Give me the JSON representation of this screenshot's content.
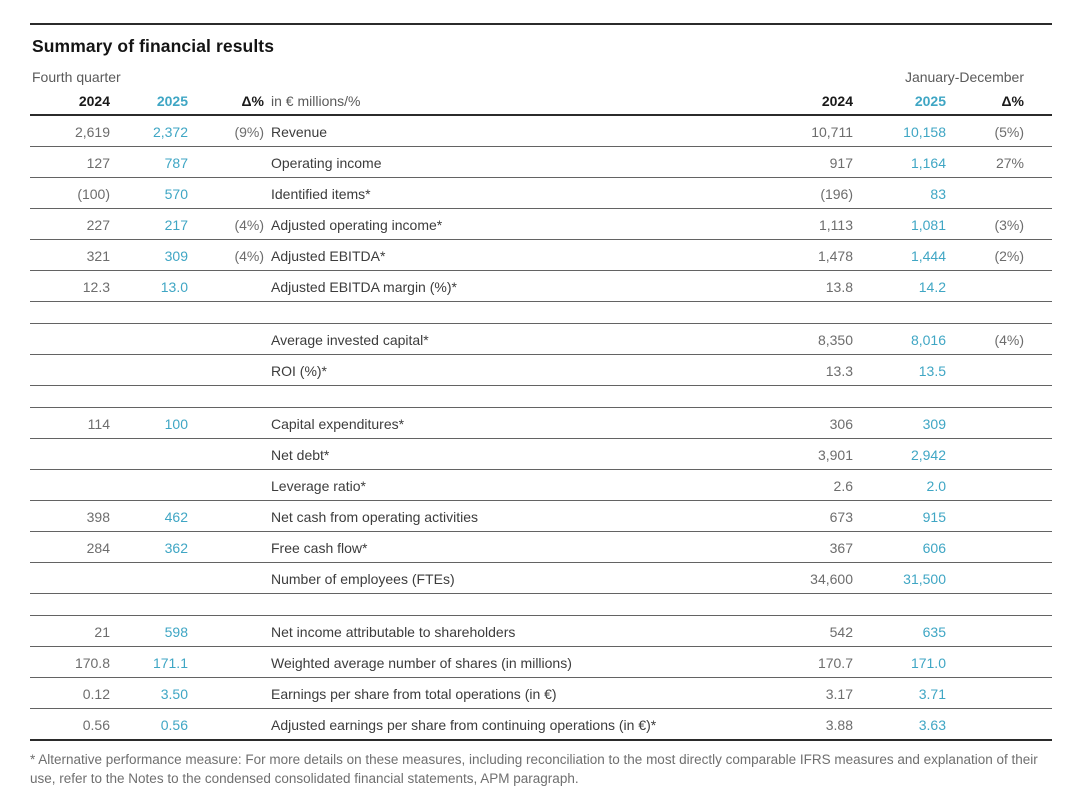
{
  "page": {
    "title": "Summary of financial results"
  },
  "table": {
    "accent_color": "#3fa6c4",
    "left_period_label": "Fourth quarter",
    "right_period_label": "January-December",
    "unit_label": "in € millions/%",
    "columns": {
      "year_prior": "2024",
      "year_current": "2025",
      "delta": "Δ%"
    },
    "groups": [
      [
        {
          "fq2024": "2,619",
          "fq2025": "2,372",
          "fq_delta": "(9%)",
          "label": "Revenue",
          "jd2024": "10,711",
          "jd2025": "10,158",
          "jd_delta": "(5%)"
        },
        {
          "fq2024": "127",
          "fq2025": "787",
          "fq_delta": "",
          "label": "Operating income",
          "jd2024": "917",
          "jd2025": "1,164",
          "jd_delta": "27%"
        },
        {
          "fq2024": "(100)",
          "fq2025": "570",
          "fq_delta": "",
          "label": "Identified items*",
          "jd2024": "(196)",
          "jd2025": "83",
          "jd_delta": ""
        },
        {
          "fq2024": "227",
          "fq2025": "217",
          "fq_delta": "(4%)",
          "label": "Adjusted operating income*",
          "jd2024": "1,113",
          "jd2025": "1,081",
          "jd_delta": "(3%)"
        },
        {
          "fq2024": "321",
          "fq2025": "309",
          "fq_delta": "(4%)",
          "label": "Adjusted EBITDA*",
          "jd2024": "1,478",
          "jd2025": "1,444",
          "jd_delta": "(2%)"
        },
        {
          "fq2024": "12.3",
          "fq2025": "13.0",
          "fq_delta": "",
          "label": "Adjusted EBITDA margin (%)*",
          "jd2024": "13.8",
          "jd2025": "14.2",
          "jd_delta": ""
        }
      ],
      [
        {
          "fq2024": "",
          "fq2025": "",
          "fq_delta": "",
          "label": "Average invested capital*",
          "jd2024": "8,350",
          "jd2025": "8,016",
          "jd_delta": "(4%)"
        },
        {
          "fq2024": "",
          "fq2025": "",
          "fq_delta": "",
          "label": "ROI (%)*",
          "jd2024": "13.3",
          "jd2025": "13.5",
          "jd_delta": ""
        }
      ],
      [
        {
          "fq2024": "114",
          "fq2025": "100",
          "fq_delta": "",
          "label": "Capital expenditures*",
          "jd2024": "306",
          "jd2025": "309",
          "jd_delta": ""
        },
        {
          "fq2024": "",
          "fq2025": "",
          "fq_delta": "",
          "label": "Net debt*",
          "jd2024": "3,901",
          "jd2025": "2,942",
          "jd_delta": ""
        },
        {
          "fq2024": "",
          "fq2025": "",
          "fq_delta": "",
          "label": "Leverage ratio*",
          "jd2024": "2.6",
          "jd2025": "2.0",
          "jd_delta": ""
        },
        {
          "fq2024": "398",
          "fq2025": "462",
          "fq_delta": "",
          "label": "Net cash from operating activities",
          "jd2024": "673",
          "jd2025": "915",
          "jd_delta": ""
        },
        {
          "fq2024": "284",
          "fq2025": "362",
          "fq_delta": "",
          "label": "Free cash flow*",
          "jd2024": "367",
          "jd2025": "606",
          "jd_delta": ""
        },
        {
          "fq2024": "",
          "fq2025": "",
          "fq_delta": "",
          "label": "Number of employees (FTEs)",
          "jd2024": "34,600",
          "jd2025": "31,500",
          "jd_delta": ""
        }
      ],
      [
        {
          "fq2024": "21",
          "fq2025": "598",
          "fq_delta": "",
          "label": "Net income attributable to shareholders",
          "jd2024": "542",
          "jd2025": "635",
          "jd_delta": ""
        },
        {
          "fq2024": "170.8",
          "fq2025": "171.1",
          "fq_delta": "",
          "label": "Weighted average number of shares (in millions)",
          "jd2024": "170.7",
          "jd2025": "171.0",
          "jd_delta": ""
        },
        {
          "fq2024": "0.12",
          "fq2025": "3.50",
          "fq_delta": "",
          "label": "Earnings per share from total operations (in €)",
          "jd2024": "3.17",
          "jd2025": "3.71",
          "jd_delta": ""
        },
        {
          "fq2024": "0.56",
          "fq2025": "0.56",
          "fq_delta": "",
          "label": "Adjusted earnings per share from continuing operations (in €)*",
          "jd2024": "3.88",
          "jd2025": "3.63",
          "jd_delta": ""
        }
      ]
    ],
    "footnote": "* Alternative performance measure: For more details on these measures, including reconciliation to the most directly comparable IFRS measures and explanation of their use, refer to the Notes to the condensed consolidated financial statements, APM paragraph."
  }
}
